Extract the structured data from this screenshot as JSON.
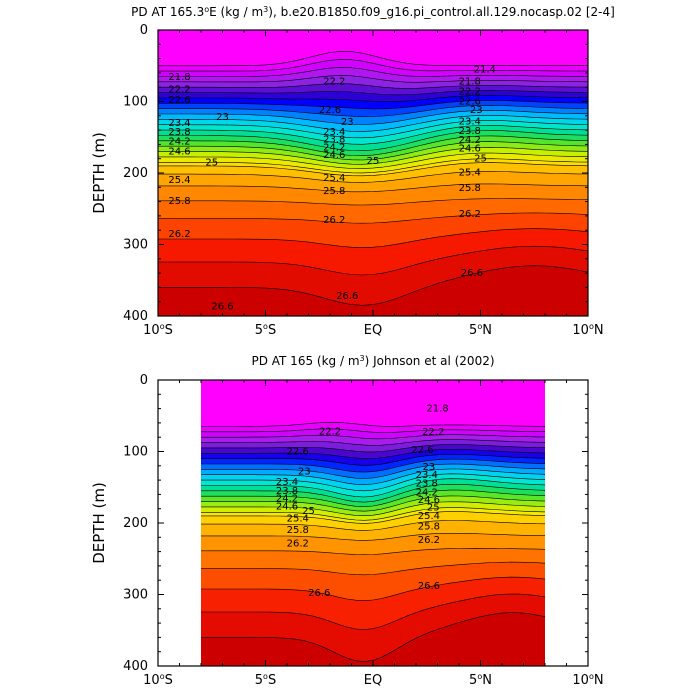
{
  "chart_data": [
    {
      "type": "contour",
      "title_pre": "PD AT 165.3",
      "title_deg": "o",
      "title_mid": "E (kg / m",
      "title_sup": "3",
      "title_post": "), b.e20.B1850.f09_g16.pi_control.all.129.nocasp.02 [2-4]",
      "ylabel": "DEPTH (m)",
      "x_ticks": [
        {
          "value": -10,
          "num": "10",
          "deg": "o",
          "hemi": "S"
        },
        {
          "value": -5,
          "num": "5",
          "deg": "o",
          "hemi": "S"
        },
        {
          "value": 0,
          "num": "EQ",
          "deg": "",
          "hemi": ""
        },
        {
          "value": 5,
          "num": "5",
          "deg": "o",
          "hemi": "N"
        },
        {
          "value": 10,
          "num": "10",
          "deg": "o",
          "hemi": "N"
        }
      ],
      "y_ticks": [
        "0",
        "100",
        "200",
        "300",
        "400"
      ],
      "xlim": [
        -10,
        10
      ],
      "ylim": [
        0,
        400
      ],
      "data_xlim": [
        -10,
        10
      ],
      "contour_levels": [
        21.4,
        21.6,
        21.8,
        22.0,
        22.2,
        22.4,
        22.6,
        22.8,
        23.0,
        23.2,
        23.4,
        23.6,
        23.8,
        24.0,
        24.2,
        24.4,
        24.6,
        24.8,
        25.0,
        25.2,
        25.4,
        25.6,
        25.8,
        26.0,
        26.2,
        26.4,
        26.6
      ],
      "contour_labels": [
        {
          "text": "21.4",
          "x": 5.2,
          "y": 55
        },
        {
          "text": "21.8",
          "x": -9.0,
          "y": 66
        },
        {
          "text": "21.8",
          "x": 4.5,
          "y": 72
        },
        {
          "text": "22.2",
          "x": -9.0,
          "y": 83
        },
        {
          "text": "22.2",
          "x": -1.8,
          "y": 72
        },
        {
          "text": "22.2",
          "x": 4.5,
          "y": 86
        },
        {
          "text": "22.6",
          "x": -9.0,
          "y": 98
        },
        {
          "text": "22.6",
          "x": -2.0,
          "y": 112
        },
        {
          "text": "22.6",
          "x": 4.5,
          "y": 100
        },
        {
          "text": "23",
          "x": -7.0,
          "y": 122
        },
        {
          "text": "23",
          "x": -1.2,
          "y": 129
        },
        {
          "text": "23",
          "x": 4.8,
          "y": 112
        },
        {
          "text": "23.4",
          "x": -9.0,
          "y": 130
        },
        {
          "text": "23.4",
          "x": -1.8,
          "y": 143
        },
        {
          "text": "23.4",
          "x": 4.5,
          "y": 128
        },
        {
          "text": "23.8",
          "x": -9.0,
          "y": 143
        },
        {
          "text": "23.8",
          "x": -1.8,
          "y": 153
        },
        {
          "text": "23.8",
          "x": 4.5,
          "y": 141
        },
        {
          "text": "24.2",
          "x": -9.0,
          "y": 156
        },
        {
          "text": "24.2",
          "x": -1.8,
          "y": 164
        },
        {
          "text": "24.2",
          "x": 4.5,
          "y": 154
        },
        {
          "text": "24.6",
          "x": -9.0,
          "y": 170
        },
        {
          "text": "24.6",
          "x": -1.8,
          "y": 175
        },
        {
          "text": "24.6",
          "x": 4.5,
          "y": 166
        },
        {
          "text": "25",
          "x": -7.5,
          "y": 185
        },
        {
          "text": "25",
          "x": 0.0,
          "y": 183
        },
        {
          "text": "25",
          "x": 5.0,
          "y": 180
        },
        {
          "text": "25.4",
          "x": -9.0,
          "y": 210
        },
        {
          "text": "25.4",
          "x": -1.8,
          "y": 207
        },
        {
          "text": "25.4",
          "x": 4.5,
          "y": 199
        },
        {
          "text": "25.8",
          "x": -9.0,
          "y": 239
        },
        {
          "text": "25.8",
          "x": -1.8,
          "y": 225
        },
        {
          "text": "25.8",
          "x": 4.5,
          "y": 221
        },
        {
          "text": "26.2",
          "x": -9.0,
          "y": 285
        },
        {
          "text": "26.2",
          "x": -1.8,
          "y": 266
        },
        {
          "text": "26.2",
          "x": 4.5,
          "y": 257
        },
        {
          "text": "26.6",
          "x": -7.0,
          "y": 387
        },
        {
          "text": "26.6",
          "x": -1.2,
          "y": 372
        },
        {
          "text": "26.6",
          "x": 4.6,
          "y": 340
        }
      ]
    },
    {
      "type": "contour",
      "title_pre": "PD AT 165 (kg / m",
      "title_deg": "",
      "title_mid": "",
      "title_sup": "3",
      "title_post": ") Johnson et al (2002)",
      "ylabel": "DEPTH (m)",
      "x_ticks": [
        {
          "value": -10,
          "num": "10",
          "deg": "o",
          "hemi": "S"
        },
        {
          "value": -5,
          "num": "5",
          "deg": "o",
          "hemi": "S"
        },
        {
          "value": 0,
          "num": "EQ",
          "deg": "",
          "hemi": ""
        },
        {
          "value": 5,
          "num": "5",
          "deg": "o",
          "hemi": "N"
        },
        {
          "value": 10,
          "num": "10",
          "deg": "o",
          "hemi": "N"
        }
      ],
      "y_ticks": [
        "0",
        "100",
        "200",
        "300",
        "400"
      ],
      "xlim": [
        -10,
        10
      ],
      "ylim": [
        0,
        400
      ],
      "data_xlim": [
        -8,
        8
      ],
      "contour_levels": [
        21.8,
        22.0,
        22.2,
        22.4,
        22.6,
        22.8,
        23.0,
        23.2,
        23.4,
        23.6,
        23.8,
        24.0,
        24.2,
        24.4,
        24.6,
        24.8,
        25.0,
        25.2,
        25.4,
        25.6,
        25.8,
        26.0,
        26.2,
        26.4,
        26.6
      ],
      "contour_labels": [
        {
          "text": "21.8",
          "x": 3.0,
          "y": 40
        },
        {
          "text": "22.2",
          "x": -2.0,
          "y": 72
        },
        {
          "text": "22.2",
          "x": 2.8,
          "y": 73
        },
        {
          "text": "22.6",
          "x": -3.5,
          "y": 100
        },
        {
          "text": "22.6",
          "x": 2.3,
          "y": 98
        },
        {
          "text": "23",
          "x": -3.2,
          "y": 128
        },
        {
          "text": "23",
          "x": 2.6,
          "y": 122
        },
        {
          "text": "23.4",
          "x": -4.0,
          "y": 143
        },
        {
          "text": "23.4",
          "x": 2.5,
          "y": 133
        },
        {
          "text": "23.8",
          "x": -4.0,
          "y": 155
        },
        {
          "text": "23.8",
          "x": 2.5,
          "y": 145
        },
        {
          "text": "24.2",
          "x": -4.0,
          "y": 166
        },
        {
          "text": "24.2",
          "x": 2.5,
          "y": 157
        },
        {
          "text": "24.6",
          "x": -4.0,
          "y": 177
        },
        {
          "text": "24.6",
          "x": 2.6,
          "y": 168
        },
        {
          "text": "25",
          "x": -3.0,
          "y": 183
        },
        {
          "text": "25",
          "x": 2.8,
          "y": 178
        },
        {
          "text": "25.4",
          "x": -3.5,
          "y": 194
        },
        {
          "text": "25.4",
          "x": 2.6,
          "y": 190
        },
        {
          "text": "25.8",
          "x": -3.5,
          "y": 210
        },
        {
          "text": "25.8",
          "x": 2.6,
          "y": 205
        },
        {
          "text": "26.2",
          "x": -3.5,
          "y": 229
        },
        {
          "text": "26.2",
          "x": 2.6,
          "y": 224
        },
        {
          "text": "26.6",
          "x": -2.5,
          "y": 298
        },
        {
          "text": "26.6",
          "x": 2.6,
          "y": 288
        }
      ]
    }
  ]
}
